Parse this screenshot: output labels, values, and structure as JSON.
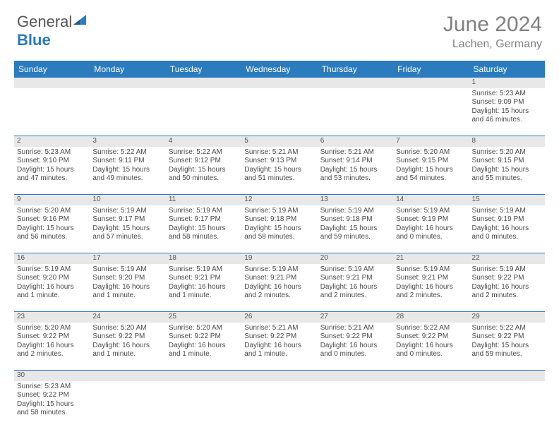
{
  "brand": {
    "part1": "General",
    "part2": "Blue"
  },
  "title": {
    "month": "June 2024",
    "location": "Lachen, Germany"
  },
  "colors": {
    "header_bg": "#2b7bbf",
    "header_text": "#ffffff",
    "daynum_bg": "#e8e8e8",
    "border": "#2b7bbf",
    "title_color": "#808080"
  },
  "weekdays": [
    "Sunday",
    "Monday",
    "Tuesday",
    "Wednesday",
    "Thursday",
    "Friday",
    "Saturday"
  ],
  "weeks": [
    {
      "nums": [
        "",
        "",
        "",
        "",
        "",
        "",
        "1"
      ],
      "cells": [
        null,
        null,
        null,
        null,
        null,
        null,
        {
          "sr": "Sunrise: 5:23 AM",
          "ss": "Sunset: 9:09 PM",
          "dl1": "Daylight: 15 hours",
          "dl2": "and 46 minutes."
        }
      ]
    },
    {
      "nums": [
        "2",
        "3",
        "4",
        "5",
        "6",
        "7",
        "8"
      ],
      "cells": [
        {
          "sr": "Sunrise: 5:23 AM",
          "ss": "Sunset: 9:10 PM",
          "dl1": "Daylight: 15 hours",
          "dl2": "and 47 minutes."
        },
        {
          "sr": "Sunrise: 5:22 AM",
          "ss": "Sunset: 9:11 PM",
          "dl1": "Daylight: 15 hours",
          "dl2": "and 49 minutes."
        },
        {
          "sr": "Sunrise: 5:22 AM",
          "ss": "Sunset: 9:12 PM",
          "dl1": "Daylight: 15 hours",
          "dl2": "and 50 minutes."
        },
        {
          "sr": "Sunrise: 5:21 AM",
          "ss": "Sunset: 9:13 PM",
          "dl1": "Daylight: 15 hours",
          "dl2": "and 51 minutes."
        },
        {
          "sr": "Sunrise: 5:21 AM",
          "ss": "Sunset: 9:14 PM",
          "dl1": "Daylight: 15 hours",
          "dl2": "and 53 minutes."
        },
        {
          "sr": "Sunrise: 5:20 AM",
          "ss": "Sunset: 9:15 PM",
          "dl1": "Daylight: 15 hours",
          "dl2": "and 54 minutes."
        },
        {
          "sr": "Sunrise: 5:20 AM",
          "ss": "Sunset: 9:15 PM",
          "dl1": "Daylight: 15 hours",
          "dl2": "and 55 minutes."
        }
      ]
    },
    {
      "nums": [
        "9",
        "10",
        "11",
        "12",
        "13",
        "14",
        "15"
      ],
      "cells": [
        {
          "sr": "Sunrise: 5:20 AM",
          "ss": "Sunset: 9:16 PM",
          "dl1": "Daylight: 15 hours",
          "dl2": "and 56 minutes."
        },
        {
          "sr": "Sunrise: 5:19 AM",
          "ss": "Sunset: 9:17 PM",
          "dl1": "Daylight: 15 hours",
          "dl2": "and 57 minutes."
        },
        {
          "sr": "Sunrise: 5:19 AM",
          "ss": "Sunset: 9:17 PM",
          "dl1": "Daylight: 15 hours",
          "dl2": "and 58 minutes."
        },
        {
          "sr": "Sunrise: 5:19 AM",
          "ss": "Sunset: 9:18 PM",
          "dl1": "Daylight: 15 hours",
          "dl2": "and 58 minutes."
        },
        {
          "sr": "Sunrise: 5:19 AM",
          "ss": "Sunset: 9:18 PM",
          "dl1": "Daylight: 15 hours",
          "dl2": "and 59 minutes."
        },
        {
          "sr": "Sunrise: 5:19 AM",
          "ss": "Sunset: 9:19 PM",
          "dl1": "Daylight: 16 hours",
          "dl2": "and 0 minutes."
        },
        {
          "sr": "Sunrise: 5:19 AM",
          "ss": "Sunset: 9:19 PM",
          "dl1": "Daylight: 16 hours",
          "dl2": "and 0 minutes."
        }
      ]
    },
    {
      "nums": [
        "16",
        "17",
        "18",
        "19",
        "20",
        "21",
        "22"
      ],
      "cells": [
        {
          "sr": "Sunrise: 5:19 AM",
          "ss": "Sunset: 9:20 PM",
          "dl1": "Daylight: 16 hours",
          "dl2": "and 1 minute."
        },
        {
          "sr": "Sunrise: 5:19 AM",
          "ss": "Sunset: 9:20 PM",
          "dl1": "Daylight: 16 hours",
          "dl2": "and 1 minute."
        },
        {
          "sr": "Sunrise: 5:19 AM",
          "ss": "Sunset: 9:21 PM",
          "dl1": "Daylight: 16 hours",
          "dl2": "and 1 minute."
        },
        {
          "sr": "Sunrise: 5:19 AM",
          "ss": "Sunset: 9:21 PM",
          "dl1": "Daylight: 16 hours",
          "dl2": "and 2 minutes."
        },
        {
          "sr": "Sunrise: 5:19 AM",
          "ss": "Sunset: 9:21 PM",
          "dl1": "Daylight: 16 hours",
          "dl2": "and 2 minutes."
        },
        {
          "sr": "Sunrise: 5:19 AM",
          "ss": "Sunset: 9:21 PM",
          "dl1": "Daylight: 16 hours",
          "dl2": "and 2 minutes."
        },
        {
          "sr": "Sunrise: 5:19 AM",
          "ss": "Sunset: 9:22 PM",
          "dl1": "Daylight: 16 hours",
          "dl2": "and 2 minutes."
        }
      ]
    },
    {
      "nums": [
        "23",
        "24",
        "25",
        "26",
        "27",
        "28",
        "29"
      ],
      "cells": [
        {
          "sr": "Sunrise: 5:20 AM",
          "ss": "Sunset: 9:22 PM",
          "dl1": "Daylight: 16 hours",
          "dl2": "and 2 minutes."
        },
        {
          "sr": "Sunrise: 5:20 AM",
          "ss": "Sunset: 9:22 PM",
          "dl1": "Daylight: 16 hours",
          "dl2": "and 1 minute."
        },
        {
          "sr": "Sunrise: 5:20 AM",
          "ss": "Sunset: 9:22 PM",
          "dl1": "Daylight: 16 hours",
          "dl2": "and 1 minute."
        },
        {
          "sr": "Sunrise: 5:21 AM",
          "ss": "Sunset: 9:22 PM",
          "dl1": "Daylight: 16 hours",
          "dl2": "and 1 minute."
        },
        {
          "sr": "Sunrise: 5:21 AM",
          "ss": "Sunset: 9:22 PM",
          "dl1": "Daylight: 16 hours",
          "dl2": "and 0 minutes."
        },
        {
          "sr": "Sunrise: 5:22 AM",
          "ss": "Sunset: 9:22 PM",
          "dl1": "Daylight: 16 hours",
          "dl2": "and 0 minutes."
        },
        {
          "sr": "Sunrise: 5:22 AM",
          "ss": "Sunset: 9:22 PM",
          "dl1": "Daylight: 15 hours",
          "dl2": "and 59 minutes."
        }
      ]
    },
    {
      "nums": [
        "30",
        "",
        "",
        "",
        "",
        "",
        ""
      ],
      "cells": [
        {
          "sr": "Sunrise: 5:23 AM",
          "ss": "Sunset: 9:22 PM",
          "dl1": "Daylight: 15 hours",
          "dl2": "and 58 minutes."
        },
        null,
        null,
        null,
        null,
        null,
        null
      ]
    }
  ]
}
